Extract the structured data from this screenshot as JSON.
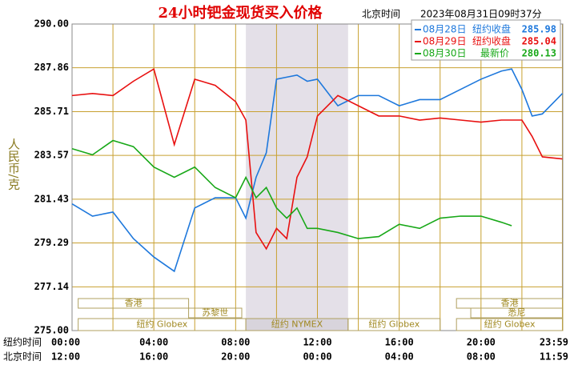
{
  "chart_data": {
    "type": "line",
    "title": "24小时钯金现货买入价格",
    "title_time_label": "北京时间",
    "title_time": "2023年08月31日09时37分",
    "y_label": "人民币/克",
    "x_row1_label": "纽约时间",
    "x_row2_label": "北京时间",
    "x": [
      0,
      1,
      2,
      3,
      4,
      5,
      6,
      7,
      8,
      8.5,
      9,
      9.5,
      10,
      10.5,
      11,
      11.5,
      12,
      13,
      14,
      15,
      16,
      17,
      18,
      19,
      20,
      21,
      21.5,
      22,
      22.5,
      23,
      23.98
    ],
    "series": [
      {
        "name": "08月28日",
        "note": "纽约收盘",
        "last": 285.98,
        "color": "#1e78dc",
        "values": [
          281.2,
          280.6,
          280.8,
          279.5,
          278.6,
          277.9,
          281,
          281.5,
          281.5,
          280.5,
          282.5,
          283.7,
          287.3,
          287.4,
          287.5,
          287.2,
          287.3,
          286,
          286.5,
          286.5,
          286,
          286.3,
          286.3,
          286.8,
          287.3,
          287.7,
          287.8,
          286.8,
          285.5,
          285.6,
          286.6
        ]
      },
      {
        "name": "08月29日",
        "note": "纽约收盘",
        "last": 285.04,
        "color": "#e81010",
        "values": [
          286.5,
          286.6,
          286.5,
          287.2,
          287.8,
          284.1,
          287.3,
          287,
          286.2,
          285.3,
          279.8,
          279,
          280,
          279.5,
          282.5,
          283.5,
          285.5,
          286.5,
          286,
          285.5,
          285.5,
          285.3,
          285.4,
          285.3,
          285.2,
          285.3,
          285.3,
          285.3,
          284.5,
          283.5,
          283.4
        ]
      },
      {
        "name": "08月30日",
        "note": "最新价",
        "last": 280.13,
        "color": "#18a818",
        "values": [
          283.9,
          283.6,
          284.3,
          284,
          283,
          282.5,
          283,
          282,
          281.5,
          282.5,
          281.5,
          282,
          281,
          280.5,
          281,
          280,
          280,
          279.8,
          279.5,
          279.6,
          280.2,
          280,
          280.5,
          280.6,
          280.6,
          280.3,
          280.13,
          null,
          null,
          null,
          null
        ]
      }
    ],
    "xlim": [
      0,
      24
    ],
    "xticks": [
      {
        "value": 0,
        "label": "00:00"
      },
      {
        "value": 4,
        "label": "04:00"
      },
      {
        "value": 8,
        "label": "08:00"
      },
      {
        "value": 12,
        "label": "12:00"
      },
      {
        "value": 16,
        "label": "16:00"
      },
      {
        "value": 20,
        "label": "20:00"
      },
      {
        "value": 23.98,
        "label": "23:59"
      }
    ],
    "x_row2_ticks": [
      "12:00",
      "16:00",
      "20:00",
      "00:00",
      "04:00",
      "08:00",
      "11:59"
    ],
    "xgrid_minor": [
      2,
      6,
      10,
      14,
      18,
      22
    ],
    "ylim": [
      275,
      290
    ],
    "yticks": [
      {
        "value": 275,
        "label": "275.00"
      },
      277.14,
      279.29,
      281.43,
      283.57,
      285.71,
      287.86,
      {
        "value": 290,
        "label": "290.00"
      }
    ],
    "grid": true,
    "highlight": [
      8.5,
      13.5
    ],
    "sessions": [
      {
        "label": "香港",
        "start": 0.3,
        "end": 5.7
      },
      {
        "label": "香港",
        "start": 18.8,
        "end": 24
      },
      {
        "label": "苏黎世",
        "start": 5.7,
        "end": 8.3
      },
      {
        "label": "悉尼",
        "start": 19.5,
        "end": 24
      },
      {
        "label": "纽约 Globex",
        "start": 0.3,
        "end": 8.5
      },
      {
        "label": "纽约 NYMEX",
        "start": 8.5,
        "end": 13.5
      },
      {
        "label": "纽约 Globex",
        "start": 13.5,
        "end": 18
      },
      {
        "label": "纽约 Globex",
        "start": 18.8,
        "end": 24
      }
    ]
  }
}
